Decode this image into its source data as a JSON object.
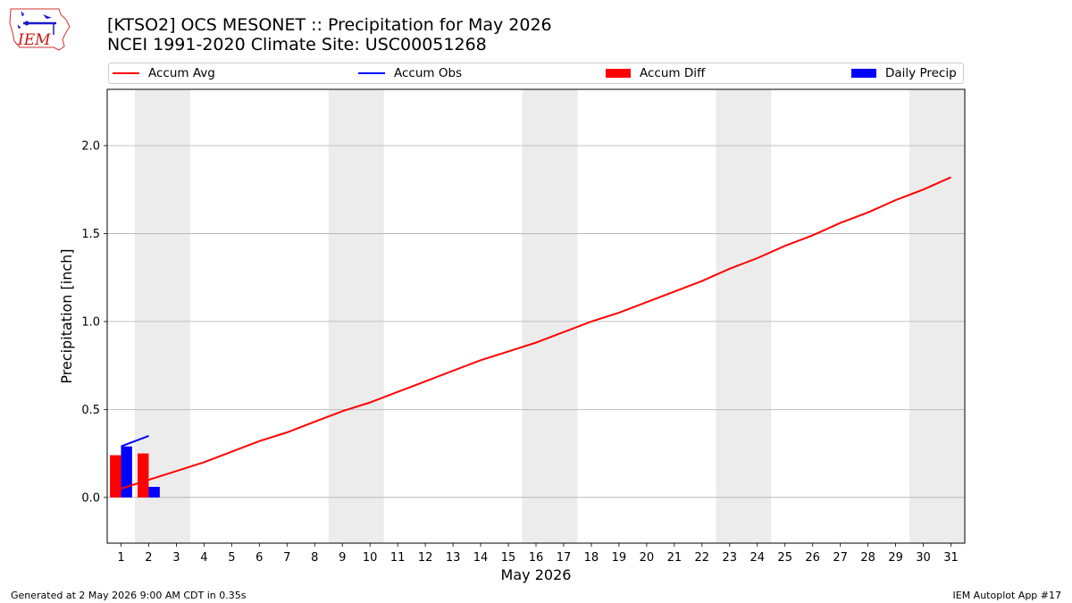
{
  "title": {
    "line1": "[KTSO2] OCS MESONET :: Precipitation for May 2026",
    "line2": "NCEI 1991-2020 Climate Site: USC00051268"
  },
  "logo": {
    "text": "IEM",
    "color": "#cc1111",
    "accent": "#1a1acc"
  },
  "legend": {
    "accum_avg": "Accum Avg",
    "accum_obs": "Accum Obs",
    "accum_diff": "Accum Diff",
    "daily_precip": "Daily Precip"
  },
  "footer": {
    "left": "Generated at 2 May 2026 9:00 AM CDT in 0.35s",
    "right": "IEM Autoplot App #17"
  },
  "colors": {
    "avg": "#ff0000",
    "obs": "#0000ff",
    "diff": "#ff0000",
    "daily": "#0000ff",
    "weekend": "#ececec",
    "grid": "#b0b0b0"
  },
  "chart_data": {
    "type": "line",
    "xlabel": "May 2026",
    "ylabel": "Precipitation [inch]",
    "xlim": [
      0.5,
      31.5
    ],
    "ylim": [
      -0.26,
      2.32
    ],
    "yticks": [
      0.0,
      0.5,
      1.0,
      1.5,
      2.0
    ],
    "ytick_labels": [
      "0.0",
      "0.5",
      "1.0",
      "1.5",
      "2.0"
    ],
    "days": [
      1,
      2,
      3,
      4,
      5,
      6,
      7,
      8,
      9,
      10,
      11,
      12,
      13,
      14,
      15,
      16,
      17,
      18,
      19,
      20,
      21,
      22,
      23,
      24,
      25,
      26,
      27,
      28,
      29,
      30,
      31
    ],
    "weekend_days": [
      2,
      3,
      9,
      10,
      16,
      17,
      23,
      24,
      30,
      31
    ],
    "grid": true,
    "legend_position": "top",
    "series": [
      {
        "name": "Accum Avg",
        "type": "line",
        "x": [
          1,
          2,
          3,
          4,
          5,
          6,
          7,
          8,
          9,
          10,
          11,
          12,
          13,
          14,
          15,
          16,
          17,
          18,
          19,
          20,
          21,
          22,
          23,
          24,
          25,
          26,
          27,
          28,
          29,
          30,
          31
        ],
        "values": [
          0.05,
          0.1,
          0.15,
          0.2,
          0.26,
          0.32,
          0.37,
          0.43,
          0.49,
          0.54,
          0.6,
          0.66,
          0.72,
          0.78,
          0.83,
          0.88,
          0.94,
          1.0,
          1.05,
          1.11,
          1.17,
          1.23,
          1.3,
          1.36,
          1.43,
          1.49,
          1.56,
          1.62,
          1.69,
          1.75,
          1.82
        ]
      },
      {
        "name": "Accum Obs",
        "type": "line",
        "x": [
          1,
          2
        ],
        "values": [
          0.29,
          0.35
        ]
      },
      {
        "name": "Accum Diff",
        "type": "bar",
        "x": [
          1,
          2
        ],
        "values": [
          0.24,
          0.25
        ]
      },
      {
        "name": "Daily Precip",
        "type": "bar",
        "x": [
          1,
          2
        ],
        "values": [
          0.29,
          0.06
        ]
      }
    ]
  }
}
